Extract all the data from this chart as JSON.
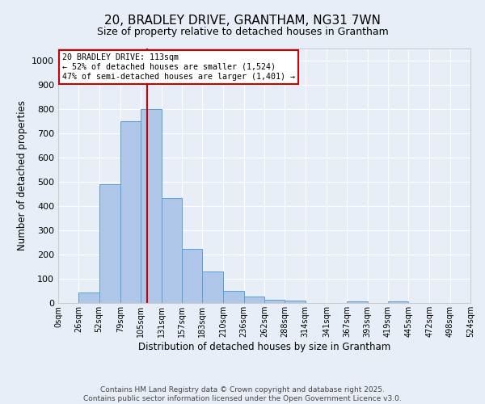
{
  "title": "20, BRADLEY DRIVE, GRANTHAM, NG31 7WN",
  "subtitle": "Size of property relative to detached houses in Grantham",
  "xlabel": "Distribution of detached houses by size in Grantham",
  "ylabel": "Number of detached properties",
  "bin_edges": [
    0,
    26,
    52,
    79,
    105,
    131,
    157,
    183,
    210,
    236,
    262,
    288,
    314,
    341,
    367,
    393,
    419,
    445,
    472,
    498,
    524
  ],
  "bar_heights": [
    0,
    43,
    490,
    750,
    800,
    435,
    225,
    130,
    50,
    28,
    15,
    10,
    0,
    0,
    7,
    0,
    7,
    0,
    0,
    0
  ],
  "bar_color": "#aec6e8",
  "bar_edge_color": "#5a9fd4",
  "red_line_x": 113,
  "red_line_color": "#cc0000",
  "annotation_line1": "20 BRADLEY DRIVE: 113sqm",
  "annotation_line2": "← 52% of detached houses are smaller (1,524)",
  "annotation_line3": "47% of semi-detached houses are larger (1,401) →",
  "annotation_box_color": "#ffffff",
  "annotation_box_edge_color": "#cc0000",
  "ylim": [
    0,
    1050
  ],
  "yticks": [
    0,
    100,
    200,
    300,
    400,
    500,
    600,
    700,
    800,
    900,
    1000
  ],
  "background_color": "#e8eef8",
  "footer_line1": "Contains HM Land Registry data © Crown copyright and database right 2025.",
  "footer_line2": "Contains public sector information licensed under the Open Government Licence v3.0.",
  "tick_labels": [
    "0sqm",
    "26sqm",
    "52sqm",
    "79sqm",
    "105sqm",
    "131sqm",
    "157sqm",
    "183sqm",
    "210sqm",
    "236sqm",
    "262sqm",
    "288sqm",
    "314sqm",
    "341sqm",
    "367sqm",
    "393sqm",
    "419sqm",
    "445sqm",
    "472sqm",
    "498sqm",
    "524sqm"
  ]
}
